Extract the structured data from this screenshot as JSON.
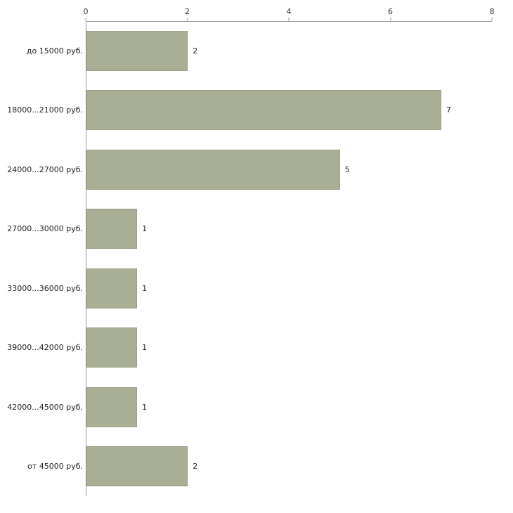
{
  "chart_data": {
    "type": "bar",
    "orientation": "horizontal",
    "title": "",
    "xlabel": "",
    "ylabel": "",
    "categories": [
      "до 15000 руб.",
      "18000...21000 руб.",
      "24000...27000 руб.",
      "27000...30000 руб.",
      "33000...36000 руб.",
      "39000...42000 руб.",
      "42000...45000 руб.",
      "от 45000 руб."
    ],
    "values": [
      2,
      7,
      5,
      1,
      1,
      1,
      1,
      2
    ],
    "xlim": [
      0,
      8
    ],
    "x_ticks": [
      0,
      2,
      4,
      6,
      8
    ],
    "grid": false,
    "legend": "none",
    "bar_color": "#a9af94",
    "bar_border_color": "#99a085",
    "axis_color": "#9a9a9a",
    "text_color": "#222222"
  }
}
